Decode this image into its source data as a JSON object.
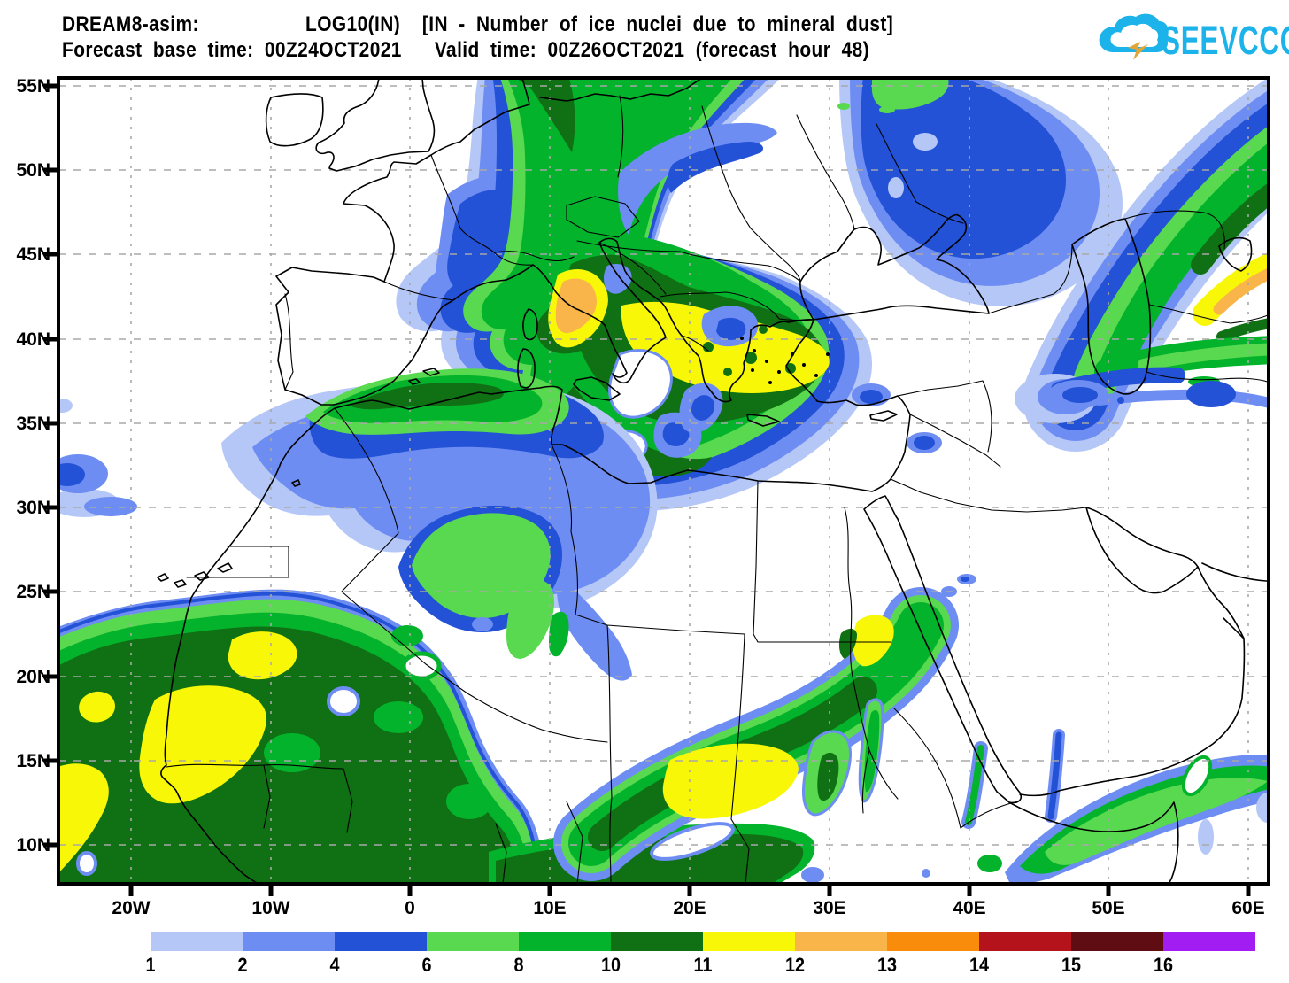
{
  "header": {
    "model": "DREAM8-asim:",
    "product": "LOG10(IN)  [IN - Number of ice nuclei due to mineral dust]",
    "line2": "Forecast base time: 00Z24OCT2021   Valid time: 00Z26OCT2021 (forecast hour 48)"
  },
  "logo": {
    "text": "SEEVCCC",
    "color": "#1cb3ea"
  },
  "map": {
    "lat_ticks": [
      "55N",
      "50N",
      "45N",
      "40N",
      "35N",
      "30N",
      "25N",
      "20N",
      "15N",
      "10N"
    ],
    "lon_ticks": [
      "20W",
      "10W",
      "0",
      "10E",
      "20E",
      "30E",
      "40E",
      "50E",
      "60E"
    ]
  },
  "colorbar": {
    "segments": [
      {
        "label": "1",
        "color": "#b5c7f7"
      },
      {
        "label": "2",
        "color": "#6e8df2"
      },
      {
        "label": "4",
        "color": "#2352d6"
      },
      {
        "label": "6",
        "color": "#59d94f"
      },
      {
        "label": "8",
        "color": "#04b32c"
      },
      {
        "label": "10",
        "color": "#0f7014"
      },
      {
        "label": "11",
        "color": "#f7f707"
      },
      {
        "label": "12",
        "color": "#f9b44a"
      },
      {
        "label": "13",
        "color": "#f98d0b"
      },
      {
        "label": "14",
        "color": "#b4131c"
      },
      {
        "label": "15",
        "color": "#600c13"
      },
      {
        "label": "16",
        "color": "#a21df2"
      }
    ]
  }
}
